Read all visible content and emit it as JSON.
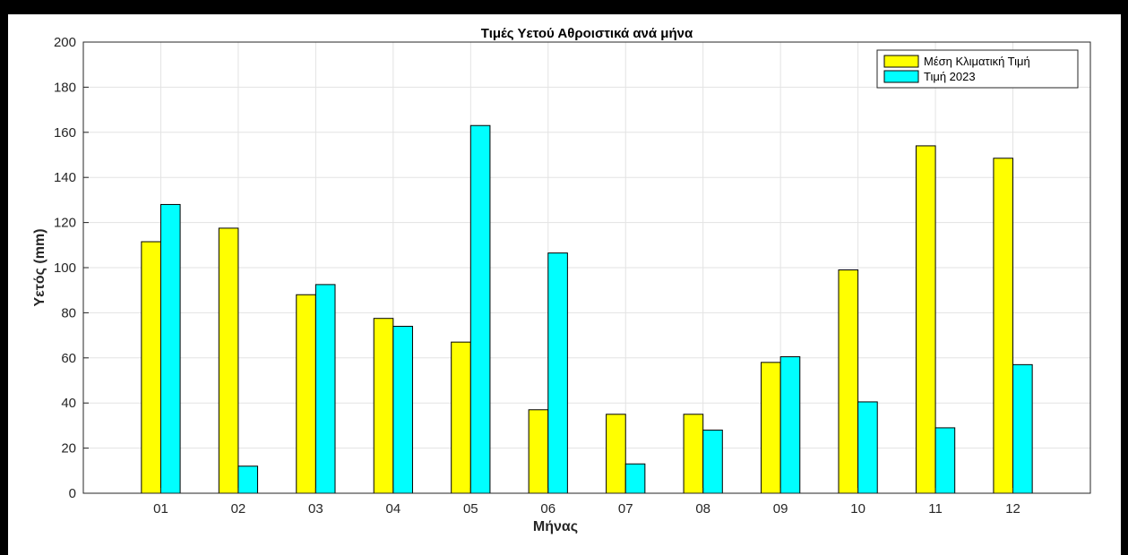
{
  "chart_data": {
    "type": "bar",
    "title": "Τιμές Υετού Αθροιστικά ανά μήνα",
    "xlabel": "Μήνας",
    "ylabel": "Υετός (mm)",
    "categories": [
      "01",
      "02",
      "03",
      "04",
      "05",
      "06",
      "07",
      "08",
      "09",
      "10",
      "11",
      "12"
    ],
    "ylim": [
      0,
      200
    ],
    "yticks": [
      0,
      20,
      40,
      60,
      80,
      100,
      120,
      140,
      160,
      180,
      200
    ],
    "grid": true,
    "legend_position": "top-right",
    "series": [
      {
        "name": "Μέση Κλιματική Τιμή",
        "color": "#ffff00",
        "values": [
          111.5,
          117.5,
          88,
          77.5,
          67,
          37,
          35,
          35,
          58,
          99,
          154,
          148.5
        ]
      },
      {
        "name": "Τιμή 2023",
        "color": "#00ffff",
        "values": [
          128,
          12,
          92.5,
          74,
          163,
          106.5,
          13,
          28,
          60.5,
          40.5,
          29,
          57
        ]
      }
    ]
  }
}
